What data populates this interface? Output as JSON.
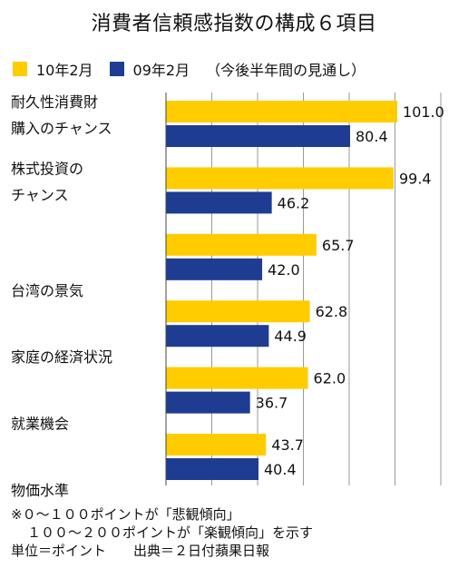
{
  "chart_data": {
    "type": "bar",
    "orientation": "horizontal",
    "title": "消費者信頼感指数の構成６項目",
    "categories": [
      [
        "耐久性消費財",
        "購入のチャンス"
      ],
      [
        "株式投資の",
        "チャンス"
      ],
      [
        "台湾の景気"
      ],
      [
        "家庭の経済状況"
      ],
      [
        "就業機会"
      ],
      [
        "物価水準"
      ]
    ],
    "series": [
      {
        "name": "10年2月",
        "color": "#FFCC00",
        "values": [
          101.0,
          99.4,
          65.7,
          62.8,
          62.0,
          43.7
        ]
      },
      {
        "name": "09年2月",
        "color": "#1F3C93",
        "values": [
          80.4,
          46.2,
          42.0,
          44.9,
          36.7,
          40.4
        ]
      }
    ],
    "legend_note": "（今後半年間の見通し）",
    "xlim": [
      0,
      120
    ],
    "grid": true,
    "value_labels": true
  },
  "notes": [
    "※０～１００ポイントが「悲観傾向」",
    "１００～２００ポイントが「楽観傾向」を示す",
    "単位＝ポイント　　出典＝２日付蘋果日報"
  ]
}
